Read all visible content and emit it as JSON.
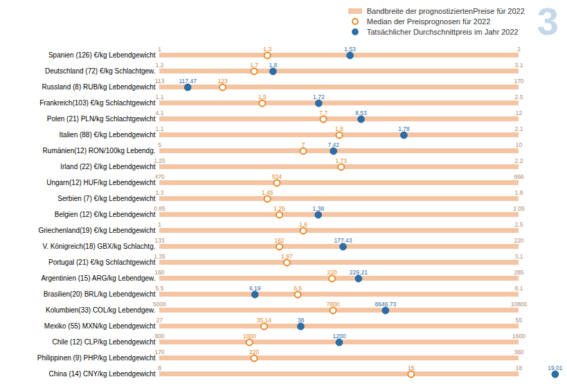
{
  "chart_data": {
    "type": "range",
    "orientation": "horizontal",
    "categories": [
      "Spanien (126) €/kg Lebendgewicht",
      "Deutschland (72) €/kg Schlachtgew.",
      "Russland (8) RUB/kg Lebendgewicht",
      "Frankreich(103) €/kg Schlachtgewicht",
      "Polen (21) PLN/kg Schlachtgewicht",
      "Italien (88) €/kg Lebendgewicht",
      "Rumänien(12) RON/100kg Lebendg.",
      "Irland (22) €/kg Lebendgewicht",
      "Ungarn(12) HUF/kg Lebendgewicht",
      "Serbien (7) €/kg Lebendgewicht",
      "Belgien (12) €/kg Lebendgewicht",
      "Griechenland(19) €/kg Lebendgewicht",
      "V. Königreich(18) GBX/kg Schlachtg.",
      "Portugal (21) €/kg Schlachtgewicht",
      "Argentinien (15) ARG/kg Lebendgew.",
      "Brasilien(20) BRL/kg Lebendgewicht",
      "Kolumbien(33) COL/kg Lebendgew.",
      "Mexiko (55) MXN/kg Lebendgewicht",
      "Chile (12) CLP/kg Lebendgewicht",
      "Philippinen (9) PHP/kg Lebendgewicht",
      "China (14) CNY/kg Lebendgewicht"
    ],
    "series": [
      {
        "name": "Bandbreite der prognostiziertenPreise für 2022",
        "color": "#f5c5a3",
        "min": [
          1.0,
          1.2,
          113,
          1.1,
          4.1,
          1.1,
          5.0,
          1.25,
          470,
          1.3,
          0.85,
          1.0,
          133,
          1.35,
          160,
          5.5,
          5000,
          27.0,
          800,
          170,
          8.0
        ],
        "max": [
          2.0,
          3.1,
          170,
          2.5,
          12.0,
          2.1,
          10.0,
          2.2,
          666,
          1.8,
          2.05,
          2.5,
          220,
          3.1,
          285,
          8.1,
          10800,
          55.0,
          1600,
          360,
          18.0
        ]
      },
      {
        "name": "Median der Preisprognosen für 2022",
        "color": "#e8821e",
        "marker": "circle_open",
        "values": [
          1.3,
          1.7,
          123,
          1.5,
          7.7,
          1.6,
          7.0,
          1.73,
          534,
          1.45,
          1.25,
          1.6,
          162,
          1.97,
          220,
          6.5,
          7800,
          35.14,
          1000,
          220,
          15.0
        ]
      },
      {
        "name": "Tatsächlicher Durchschnittpreis im Jahr 2022",
        "color": "#2e6da4",
        "marker": "circle",
        "values": [
          1.53,
          1.8,
          117.47,
          1.72,
          8.53,
          1.78,
          7.42,
          null,
          null,
          null,
          1.38,
          null,
          177.43,
          null,
          229.21,
          6.19,
          8646.73,
          38.0,
          1200,
          null,
          19.01
        ]
      }
    ],
    "annotations": [
      "3"
    ],
    "data_labels": true,
    "tick_labels": "y",
    "legend": "upper right"
  }
}
